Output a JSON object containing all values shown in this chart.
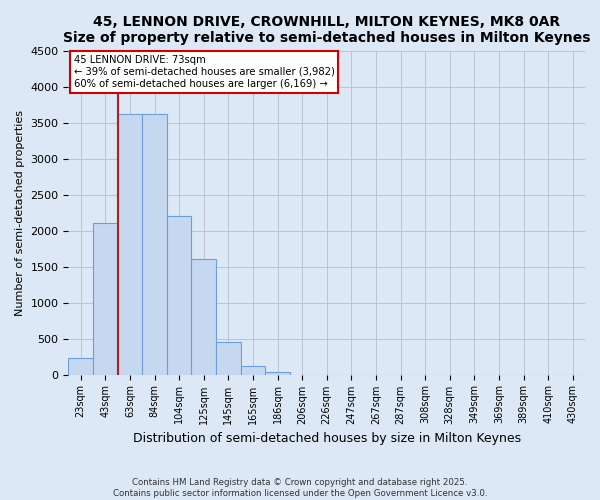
{
  "title": "45, LENNON DRIVE, CROWNHILL, MILTON KEYNES, MK8 0AR",
  "subtitle": "Size of property relative to semi-detached houses in Milton Keynes",
  "xlabel": "Distribution of semi-detached houses by size in Milton Keynes",
  "ylabel": "Number of semi-detached properties",
  "categories": [
    "23sqm",
    "43sqm",
    "63sqm",
    "84sqm",
    "104sqm",
    "125sqm",
    "145sqm",
    "165sqm",
    "186sqm",
    "206sqm",
    "226sqm",
    "247sqm",
    "267sqm",
    "287sqm",
    "308sqm",
    "328sqm",
    "349sqm",
    "369sqm",
    "389sqm",
    "410sqm",
    "430sqm"
  ],
  "values": [
    230,
    2100,
    3620,
    3620,
    2200,
    1600,
    450,
    120,
    40,
    0,
    0,
    0,
    0,
    0,
    0,
    0,
    0,
    0,
    0,
    0,
    0
  ],
  "bar_color": "#c5d8f0",
  "bar_edge_color": "#6a9fd8",
  "vline_color": "#aa2222",
  "vline_x_idx": 1.5,
  "ylim": [
    0,
    4500
  ],
  "yticks": [
    0,
    500,
    1000,
    1500,
    2000,
    2500,
    3000,
    3500,
    4000,
    4500
  ],
  "annotation_title": "45 LENNON DRIVE: 73sqm",
  "annotation_line1": "← 39% of semi-detached houses are smaller (3,982)",
  "annotation_line2": "60% of semi-detached houses are larger (6,169) →",
  "annotation_box_facecolor": "white",
  "annotation_box_edgecolor": "#cc0000",
  "footnote1": "Contains HM Land Registry data © Crown copyright and database right 2025.",
  "footnote2": "Contains public sector information licensed under the Open Government Licence v3.0.",
  "fig_facecolor": "#dce8f5",
  "plot_bg_color": "#dce8f5",
  "grid_color": "#bbbbcc",
  "title_fontsize": 10,
  "bar_width": 1.0
}
